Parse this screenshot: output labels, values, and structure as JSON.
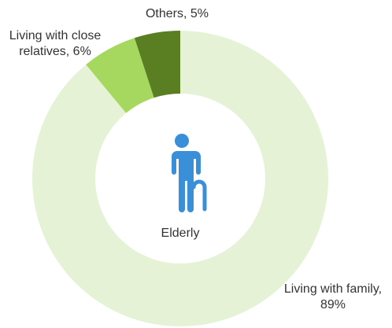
{
  "chart_data": {
    "type": "donut",
    "categories": [
      "Living with family",
      "Living with close relatives",
      "Others"
    ],
    "values": [
      89,
      6,
      5
    ],
    "value_labels": [
      "Living with family, 89%",
      "Living with close relatives, 6%",
      "Others, 5%"
    ],
    "colors": [
      "#e6f2d6",
      "#a6d85f",
      "#5a7f23"
    ],
    "center_label": "Elderly"
  }
}
